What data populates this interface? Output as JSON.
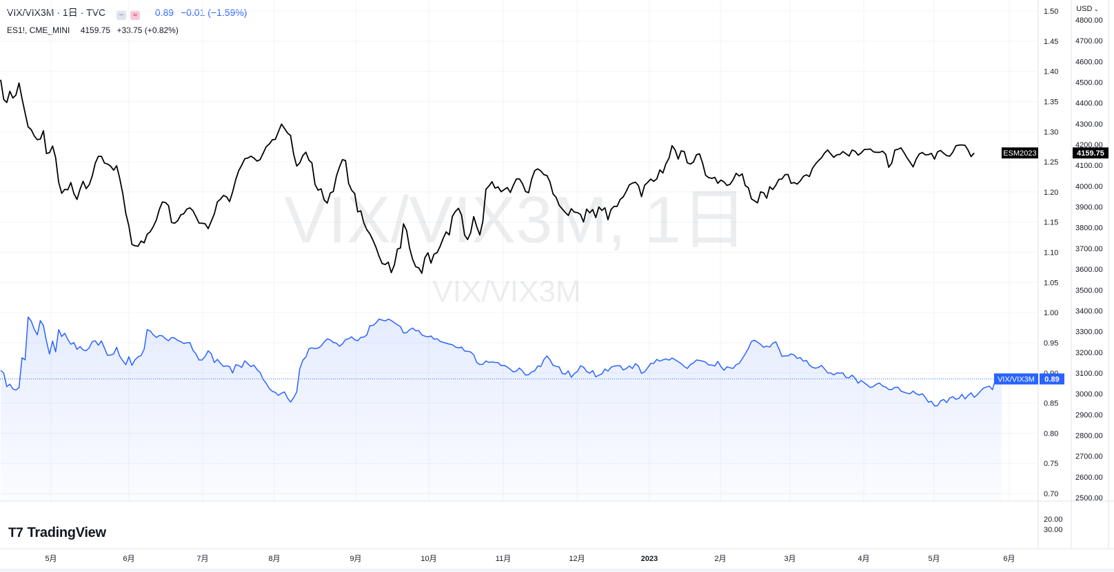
{
  "header": {
    "symbol": "VIX/VIX3M · 1日 · TVC",
    "value": "0.89",
    "change": "−0.01 (−1.59%)",
    "compare_symbol": "ES1!, CME_MINI",
    "compare_value": "4159.75",
    "compare_change": "+33.75 (+0.82%)"
  },
  "currency_label": "USD",
  "watermark": {
    "main": "VIX/VIX3M, 1日",
    "sub": "VIX/VIX3M"
  },
  "logo_text": "TradingView",
  "colors": {
    "blue": "#2962ff",
    "black": "#000000",
    "grid": "#f0f3fa",
    "axis_text": "#131722"
  },
  "chart_data": {
    "type": "line",
    "x_tick_labels": [
      "5月",
      "6月",
      "7月",
      "8月",
      "9月",
      "10月",
      "11月",
      "12月",
      "2023",
      "2月",
      "3月",
      "4月",
      "5月",
      "6月"
    ],
    "y_left_ticks": [
      "1.50",
      "1.45",
      "1.40",
      "1.35",
      "1.30",
      "1.25",
      "1.20",
      "1.15",
      "1.10",
      "1.05",
      "1.00",
      "0.95",
      "0.90",
      "0.85",
      "0.80",
      "0.75",
      "0.70"
    ],
    "y_right_ticks": [
      "4800.00",
      "4700.00",
      "4600.00",
      "4500.00",
      "4400.00",
      "4300.00",
      "4200.00",
      "4100.00",
      "4000.00",
      "3900.00",
      "3800.00",
      "3700.00",
      "3600.00",
      "3500.00",
      "3400.00",
      "3300.00",
      "3200.00",
      "3100.00",
      "3000.00",
      "2900.00",
      "2800.00",
      "2700.00",
      "2600.00",
      "2500.00"
    ],
    "lower_pane_ticks": [
      "20.00",
      "30.00"
    ],
    "series": [
      {
        "name": "ESM2023",
        "color": "#000000",
        "last_label": "4159.75",
        "values": [
          4512.0,
          4417.5,
          4402.5,
          4456.8,
          4424.3,
          4438.3,
          4496.3,
          4420.6,
          4352.2,
          4285.4,
          4272.2,
          4241.6,
          4223.5,
          4226.5,
          4266.5,
          4156.9,
          4161.4,
          4192.8,
          4137.3,
          4018.7,
          3965.4,
          3984.4,
          3982.4,
          4017.2,
          3964.0,
          3936.1,
          3984.6,
          4023.3,
          3987.9,
          4006.2,
          4048.8,
          4110.5,
          4143.6,
          4143.5,
          4111.3,
          4106.4,
          4096.4,
          4076.8,
          4098.0,
          4038.5,
          3963.7,
          3868.7,
          3809.1,
          3718.9,
          3712.9,
          3710.3,
          3735.6,
          3726.9,
          3768.2,
          3780.4,
          3804.7,
          3837.0,
          3888.4,
          3923.7,
          3921.2,
          3906.2,
          3824.5,
          3821.4,
          3833.3,
          3861.4,
          3867.2,
          3889.4,
          3895.6,
          3881.8,
          3852.5,
          3821.9,
          3821.4,
          3818.8,
          3795.3,
          3830.9,
          3866.1,
          3924.0,
          3936.8,
          3955.2,
          3948.5,
          3925.3,
          3971.6,
          4030.6,
          4074.6,
          4101.4,
          4131.8,
          4135.5,
          4144.0,
          4134.8,
          4120.3,
          4127.7,
          4158.0,
          4189.4,
          4202.4,
          4222.6,
          4224.9,
          4261.2,
          4298.6,
          4277.7,
          4255.6,
          4243.9,
          4153.1,
          4096.9,
          4111.2,
          4147.2,
          4163.3,
          4125.3,
          4111.4,
          4007.6,
          3980.5,
          3987.1,
          3933.6,
          3918.2,
          3966.8,
          3974.0,
          4047.9,
          4091.9,
          4127.5,
          4123.1,
          4013.4,
          3980.5,
          3964.6,
          3876.0,
          3880.6,
          3823.0,
          3790.0,
          3770.1,
          3738.9,
          3704.3,
          3662.3,
          3627.2,
          3622.4,
          3634.1,
          3583.3,
          3620.7,
          3696.6,
          3702.0,
          3818.5,
          3786.3,
          3701.0,
          3647.3,
          3612.2,
          3606.2,
          3580.3,
          3654.9,
          3679.1,
          3629.3,
          3672.7,
          3679.2,
          3710.2,
          3748.7,
          3779.7,
          3765.0,
          3854.2,
          3878.1,
          3893.4,
          3860.8,
          3765.5,
          3742.9,
          3775.1,
          3853.4,
          3804.7,
          3765.1,
          3829.8,
          3984.8,
          4000.5,
          4021.3,
          3990.4,
          3995.9,
          3972.8,
          3983.5,
          3993.2,
          3969.6,
          4004.2,
          4034.4,
          4034.5,
          4011.4,
          3973.9,
          3968.6,
          4034.1,
          4074.6,
          4083.0,
          4073.0,
          4055.2,
          4051.0,
          4019.9,
          3962.6,
          3946.1,
          3907.7,
          3890.6,
          3873.5,
          3858.9,
          3891.3,
          3874.8,
          3872.5,
          3863.9,
          3827.1,
          3889.4,
          3871.5,
          3887.4,
          3848.5,
          3899.7,
          3883.0,
          3895.5,
          3838.2,
          3887.8,
          3902.7,
          3902.3,
          3935.8,
          3948.2,
          3974.8,
          4005.9,
          4014.5,
          4019.0,
          4002.3,
          3949.2,
          4003.8,
          4018.0,
          4034.1,
          4023.0,
          4035.0,
          4077.7,
          4063.4,
          4107.6,
          4134.9,
          4194.8,
          4174.4,
          4130.2,
          4169.9,
          4166.3,
          4112.5,
          4106.4,
          4115.7,
          4150.8,
          4155.5,
          4110.7,
          4052.1,
          4041.1,
          4037.5,
          4042.0,
          4013.2,
          4029.2,
          4020.6,
          4003.4,
          4008.6,
          4030.1,
          4061.6,
          4048.7,
          4058.9,
          4002.6,
          3992.3,
          3938.6,
          3929.4,
          3919.3,
          3972.2,
          3968.3,
          3941.6,
          3996.9,
          3983.5,
          4004.4,
          4032.6,
          4034.5,
          4054.7,
          4056.2,
          4013.5,
          4017.1,
          4010.0,
          4024.5,
          4046.9,
          4054.3,
          4046.1,
          4085.1,
          4106.6,
          4122.8,
          4137.0,
          4159.7,
          4173.9,
          4155.2,
          4138.6,
          4150.6,
          4152.3,
          4166.2,
          4156.0,
          4144.9,
          4173.8,
          4167.6,
          4149.0,
          4160.4,
          4176.2,
          4176.8,
          4178.5,
          4165.0,
          4162.7,
          4162.8,
          4168.0,
          4153.5,
          4090.8,
          4111.1,
          4174.0,
          4176.9,
          4184.3,
          4161.8,
          4136.0,
          4115.0,
          4092.4,
          4129.4,
          4154.7,
          4162.0,
          4150.8,
          4151.4,
          4157.8,
          4129.9,
          4164.9,
          4171.8,
          4158.2,
          4146.7,
          4144.2,
          4163.6,
          4193.7,
          4197.5,
          4198.6,
          4196.1,
          4173.4,
          4142.3,
          4159.8
        ]
      },
      {
        "name": "VIX/VIX3M",
        "color": "#2962ff",
        "last_label": "0.89",
        "values": [
          0.9043,
          0.8997,
          0.8771,
          0.8813,
          0.8736,
          0.8715,
          0.8758,
          0.9253,
          0.9215,
          0.9927,
          0.9859,
          0.9725,
          0.9632,
          0.9867,
          0.9787,
          0.9525,
          0.9313,
          0.9528,
          0.9349,
          0.972,
          0.9604,
          0.9657,
          0.9555,
          0.9475,
          0.9503,
          0.9391,
          0.9437,
          0.9382,
          0.9368,
          0.9416,
          0.952,
          0.9532,
          0.9458,
          0.9531,
          0.9415,
          0.9292,
          0.9296,
          0.9313,
          0.9425,
          0.9278,
          0.9203,
          0.9136,
          0.9269,
          0.9126,
          0.9216,
          0.9265,
          0.9287,
          0.9392,
          0.9717,
          0.9696,
          0.9633,
          0.9588,
          0.962,
          0.9615,
          0.9565,
          0.9534,
          0.9588,
          0.9578,
          0.9539,
          0.952,
          0.9488,
          0.95,
          0.9503,
          0.9375,
          0.9314,
          0.9214,
          0.9215,
          0.9275,
          0.9367,
          0.9317,
          0.9172,
          0.9224,
          0.9161,
          0.9105,
          0.9117,
          0.9106,
          0.8998,
          0.9135,
          0.9121,
          0.9091,
          0.9201,
          0.9149,
          0.9104,
          0.913,
          0.9053,
          0.9007,
          0.8894,
          0.8827,
          0.8742,
          0.8695,
          0.8678,
          0.8627,
          0.8663,
          0.8686,
          0.8583,
          0.8515,
          0.859,
          0.8684,
          0.9066,
          0.921,
          0.9263,
          0.94,
          0.9416,
          0.9402,
          0.941,
          0.9446,
          0.9512,
          0.9564,
          0.9547,
          0.9505,
          0.9494,
          0.9441,
          0.9482,
          0.9553,
          0.9567,
          0.9599,
          0.955,
          0.9533,
          0.9589,
          0.9593,
          0.963,
          0.9784,
          0.9787,
          0.983,
          0.9893,
          0.9876,
          0.9861,
          0.9892,
          0.9869,
          0.9834,
          0.9797,
          0.9767,
          0.9663,
          0.9666,
          0.9716,
          0.9744,
          0.97,
          0.97,
          0.9632,
          0.961,
          0.9597,
          0.9612,
          0.956,
          0.9567,
          0.9522,
          0.9506,
          0.9492,
          0.9478,
          0.9468,
          0.9431,
          0.9414,
          0.943,
          0.9364,
          0.9358,
          0.9348,
          0.93,
          0.9173,
          0.9139,
          0.9142,
          0.9198,
          0.9174,
          0.9182,
          0.9173,
          0.9172,
          0.9119,
          0.9125,
          0.9098,
          0.9059,
          0.9016,
          0.9031,
          0.9082,
          0.903,
          0.8964,
          0.897,
          0.9016,
          0.9034,
          0.9116,
          0.9105,
          0.9222,
          0.9281,
          0.9218,
          0.9124,
          0.9109,
          0.9099,
          0.8991,
          0.8979,
          0.9033,
          0.8929,
          0.899,
          0.9026,
          0.9116,
          0.9097,
          0.9023,
          0.8996,
          0.9039,
          0.8935,
          0.8962,
          0.8983,
          0.9066,
          0.9029,
          0.9093,
          0.9112,
          0.9118,
          0.9119,
          0.9049,
          0.9072,
          0.9116,
          0.9073,
          0.9154,
          0.911,
          0.8994,
          0.9018,
          0.9085,
          0.9158,
          0.9159,
          0.9224,
          0.9195,
          0.9216,
          0.9232,
          0.9212,
          0.9247,
          0.9219,
          0.9186,
          0.9154,
          0.9106,
          0.9074,
          0.9139,
          0.9165,
          0.9214,
          0.9207,
          0.9196,
          0.9179,
          0.9131,
          0.9132,
          0.9113,
          0.9191,
          0.9105,
          0.9043,
          0.9101,
          0.9086,
          0.9074,
          0.9138,
          0.9156,
          0.9236,
          0.9315,
          0.9406,
          0.952,
          0.9543,
          0.9511,
          0.9474,
          0.9424,
          0.9445,
          0.9429,
          0.9491,
          0.9515,
          0.9404,
          0.9274,
          0.9283,
          0.9282,
          0.9316,
          0.9297,
          0.9239,
          0.9255,
          0.9193,
          0.9208,
          0.913,
          0.9093,
          0.9078,
          0.9091,
          0.9125,
          0.9063,
          0.9001,
          0.8998,
          0.8967,
          0.9001,
          0.8996,
          0.8998,
          0.8924,
          0.8921,
          0.8963,
          0.891,
          0.8829,
          0.8874,
          0.8836,
          0.8798,
          0.8759,
          0.8776,
          0.8815,
          0.8832,
          0.878,
          0.8765,
          0.8726,
          0.8723,
          0.8761,
          0.8763,
          0.87,
          0.8679,
          0.8664,
          0.8654,
          0.8698,
          0.8655,
          0.8633,
          0.8656,
          0.8594,
          0.8514,
          0.8529,
          0.8453,
          0.8456,
          0.8537,
          0.856,
          0.8509,
          0.8584,
          0.8606,
          0.8563,
          0.8577,
          0.8645,
          0.8568,
          0.8626,
          0.867,
          0.8595,
          0.8637,
          0.8695,
          0.8745,
          0.8767,
          0.8779,
          0.8721,
          0.8897,
          0.8937,
          0.89
        ]
      }
    ]
  }
}
